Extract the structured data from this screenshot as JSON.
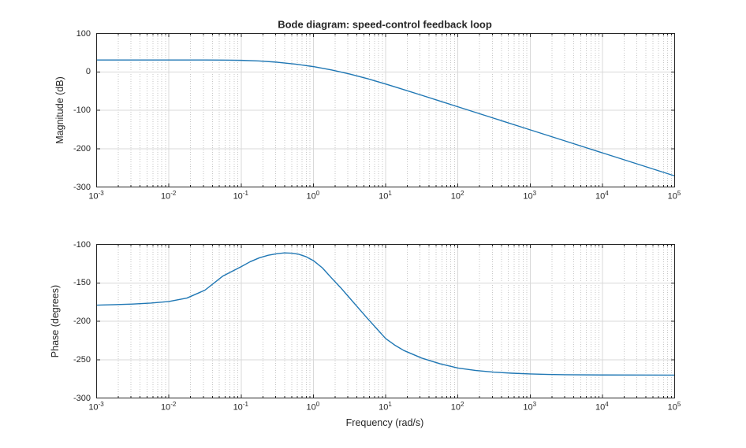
{
  "figure": {
    "title": "Bode diagram: speed-control feedback loop",
    "xlabel": "Frequency (rad/s)",
    "background": "#ffffff"
  },
  "style": {
    "line_color": "#1f77b4",
    "major_grid_color": "#d9d9d9",
    "minor_grid_color": "#c6c6c6",
    "axis_color": "#262626",
    "text_color": "#262626"
  },
  "chart_data": [
    {
      "id": "magnitude",
      "type": "line",
      "title": "Bode diagram: speed-control feedback loop",
      "ylabel": "Magnitude (dB)",
      "x_scale": "log10",
      "xlim_log10": [
        -3,
        5
      ],
      "xtick_exponents": [
        -3,
        -2,
        -1,
        0,
        1,
        2,
        3,
        4,
        5
      ],
      "ylim": [
        -300,
        100
      ],
      "yticks": [
        100,
        0,
        -100,
        -200,
        -300
      ],
      "grid": true,
      "legend": "none",
      "series": [
        {
          "name": "magnitude_dB",
          "x_log10": [
            -3,
            -2.5,
            -2,
            -1.75,
            -1.5,
            -1.25,
            -1,
            -0.75,
            -0.5,
            -0.25,
            0,
            0.25,
            0.5,
            0.75,
            1,
            1.25,
            1.5,
            1.75,
            2,
            2.5,
            3,
            3.5,
            4,
            4.5,
            5
          ],
          "y": [
            31,
            31,
            30.9,
            30.9,
            30.9,
            30.6,
            30,
            28.3,
            25.1,
            20.2,
            13.6,
            5,
            -5.5,
            -17.9,
            -31.6,
            -46.2,
            -61,
            -76,
            -91,
            -121,
            -151,
            -181,
            -211,
            -241,
            -271
          ]
        }
      ]
    },
    {
      "id": "phase",
      "type": "line",
      "xlabel": "Frequency (rad/s)",
      "ylabel": "Phase (degrees)",
      "x_scale": "log10",
      "xlim_log10": [
        -3,
        5
      ],
      "xtick_exponents": [
        -3,
        -2,
        -1,
        0,
        1,
        2,
        3,
        4,
        5
      ],
      "ylim": [
        -300,
        -100
      ],
      "yticks": [
        -100,
        -150,
        -200,
        -250,
        -300
      ],
      "grid": true,
      "legend": "none",
      "series": [
        {
          "name": "phase_deg",
          "x_log10": [
            -3,
            -2.75,
            -2.5,
            -2.25,
            -2,
            -1.75,
            -1.5,
            -1.25,
            -1,
            -0.875,
            -0.75,
            -0.625,
            -0.5,
            -0.4,
            -0.3,
            -0.2,
            -0.1,
            0,
            0.125,
            0.25,
            0.375,
            0.5,
            0.625,
            0.75,
            0.875,
            1,
            1.125,
            1.25,
            1.5,
            1.75,
            2,
            2.25,
            2.5,
            2.75,
            3,
            3.25,
            3.5,
            4,
            4.5,
            5
          ],
          "y": [
            -179,
            -178.4,
            -177.6,
            -176.3,
            -174.3,
            -169.8,
            -159.5,
            -141,
            -129,
            -122.5,
            -117.5,
            -114,
            -112,
            -111,
            -111.3,
            -112.8,
            -116,
            -121,
            -130.5,
            -143.5,
            -156,
            -169.5,
            -183,
            -196.5,
            -209.5,
            -222.5,
            -231,
            -238,
            -248,
            -255.3,
            -261,
            -264.2,
            -266.3,
            -267.7,
            -268.7,
            -269.3,
            -269.7,
            -270,
            -270.1,
            -270.2
          ]
        }
      ]
    }
  ]
}
